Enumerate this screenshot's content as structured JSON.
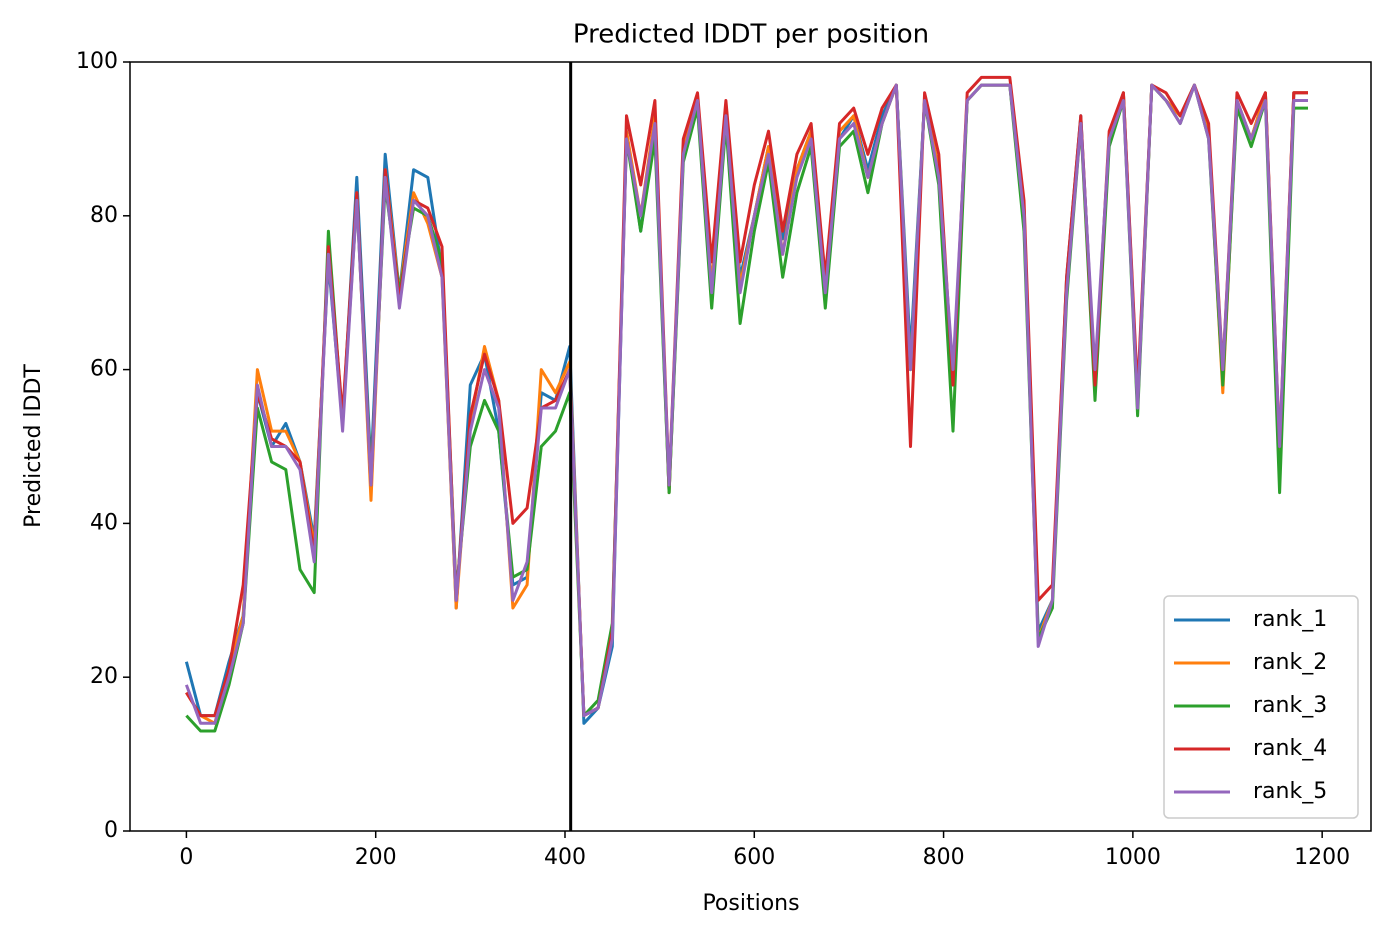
{
  "chart_data": {
    "type": "line",
    "title": "Predicted lDDT per position",
    "xlabel": "Positions",
    "ylabel": "Predicted lDDT",
    "x": [
      0,
      15,
      30,
      45,
      60,
      75,
      90,
      105,
      120,
      135,
      150,
      165,
      180,
      195,
      210,
      225,
      240,
      255,
      270,
      285,
      300,
      315,
      330,
      345,
      360,
      375,
      390,
      405,
      420,
      435,
      450,
      465,
      480,
      495,
      510,
      525,
      540,
      555,
      570,
      585,
      600,
      615,
      630,
      645,
      660,
      675,
      690,
      705,
      720,
      735,
      750,
      765,
      780,
      795,
      810,
      825,
      840,
      855,
      870,
      885,
      900,
      915,
      930,
      945,
      960,
      975,
      990,
      1005,
      1020,
      1035,
      1050,
      1065,
      1080,
      1095,
      1110,
      1125,
      1140,
      1155,
      1170,
      1185
    ],
    "series": [
      {
        "name": "rank_1",
        "color": "#1f77b4",
        "values": [
          22,
          15,
          15,
          22,
          28,
          57,
          50,
          53,
          48,
          38,
          74,
          53,
          85,
          47,
          88,
          70,
          86,
          85,
          73,
          29,
          58,
          62,
          52,
          32,
          33,
          57,
          56,
          63,
          14,
          16,
          24,
          91,
          78,
          92,
          44,
          88,
          95,
          70,
          94,
          72,
          80,
          89,
          77,
          86,
          91,
          70,
          90,
          93,
          86,
          93,
          97,
          62,
          95,
          86,
          58,
          95,
          97,
          97,
          97,
          81,
          26,
          30,
          72,
          93,
          58,
          90,
          96,
          56,
          97,
          95,
          93,
          97,
          91,
          58,
          95,
          90,
          96,
          48,
          96,
          96
        ]
      },
      {
        "name": "rank_2",
        "color": "#ff7f0e",
        "values": [
          18,
          15,
          14,
          21,
          28,
          60,
          52,
          52,
          48,
          37,
          75,
          53,
          83,
          43,
          86,
          70,
          83,
          79,
          72,
          29,
          53,
          63,
          56,
          29,
          32,
          60,
          57,
          61,
          15,
          16,
          26,
          91,
          80,
          93,
          44,
          89,
          95,
          71,
          93,
          71,
          80,
          89,
          75,
          86,
          91,
          71,
          91,
          93,
          85,
          92,
          97,
          60,
          95,
          86,
          58,
          95,
          97,
          97,
          97,
          80,
          25,
          30,
          71,
          92,
          58,
          90,
          96,
          55,
          97,
          95,
          93,
          97,
          91,
          57,
          95,
          90,
          96,
          48,
          96,
          96
        ]
      },
      {
        "name": "rank_3",
        "color": "#2ca02c",
        "values": [
          15,
          13,
          13,
          19,
          27,
          55,
          48,
          47,
          34,
          31,
          78,
          53,
          82,
          46,
          84,
          70,
          81,
          80,
          74,
          31,
          50,
          56,
          52,
          33,
          34,
          50,
          52,
          57,
          15,
          17,
          27,
          90,
          78,
          90,
          44,
          87,
          94,
          68,
          92,
          66,
          78,
          87,
          72,
          83,
          89,
          68,
          89,
          91,
          83,
          92,
          97,
          60,
          95,
          84,
          52,
          95,
          97,
          97,
          97,
          78,
          25,
          29,
          69,
          92,
          56,
          89,
          95,
          54,
          97,
          95,
          92,
          97,
          90,
          58,
          94,
          89,
          95,
          44,
          94,
          94
        ]
      },
      {
        "name": "rank_4",
        "color": "#d62728",
        "values": [
          18,
          15,
          15,
          21,
          32,
          57,
          51,
          50,
          48,
          36,
          76,
          54,
          83,
          45,
          86,
          69,
          82,
          81,
          76,
          30,
          54,
          62,
          56,
          40,
          42,
          55,
          56,
          60,
          15,
          16,
          26,
          93,
          84,
          95,
          45,
          90,
          96,
          74,
          95,
          74,
          84,
          91,
          78,
          88,
          92,
          72,
          92,
          94,
          88,
          94,
          97,
          50,
          96,
          88,
          58,
          96,
          98,
          98,
          98,
          82,
          30,
          32,
          72,
          93,
          58,
          91,
          96,
          57,
          97,
          96,
          93,
          97,
          92,
          60,
          96,
          92,
          96,
          50,
          96,
          96
        ]
      },
      {
        "name": "rank_5",
        "color": "#9467bd",
        "values": [
          19,
          14,
          14,
          20,
          27,
          58,
          50,
          50,
          47,
          35,
          75,
          52,
          82,
          45,
          85,
          68,
          82,
          80,
          72,
          30,
          52,
          60,
          55,
          30,
          35,
          55,
          55,
          60,
          15,
          16,
          25,
          90,
          80,
          92,
          45,
          88,
          95,
          70,
          93,
          70,
          80,
          88,
          75,
          85,
          90,
          70,
          90,
          92,
          85,
          92,
          97,
          60,
          95,
          85,
          60,
          95,
          97,
          97,
          97,
          80,
          24,
          30,
          70,
          92,
          60,
          90,
          95,
          55,
          97,
          95,
          92,
          97,
          90,
          60,
          95,
          90,
          95,
          50,
          95,
          95
        ]
      }
    ],
    "vlines": [
      406
    ],
    "xlim": [
      -59.6,
      1251.6
    ],
    "xticks": [
      0,
      200,
      400,
      600,
      800,
      1000,
      1200
    ],
    "ylim": [
      0,
      100
    ],
    "yticks": [
      0,
      20,
      40,
      60,
      80,
      100
    ],
    "legend": "lower right"
  }
}
